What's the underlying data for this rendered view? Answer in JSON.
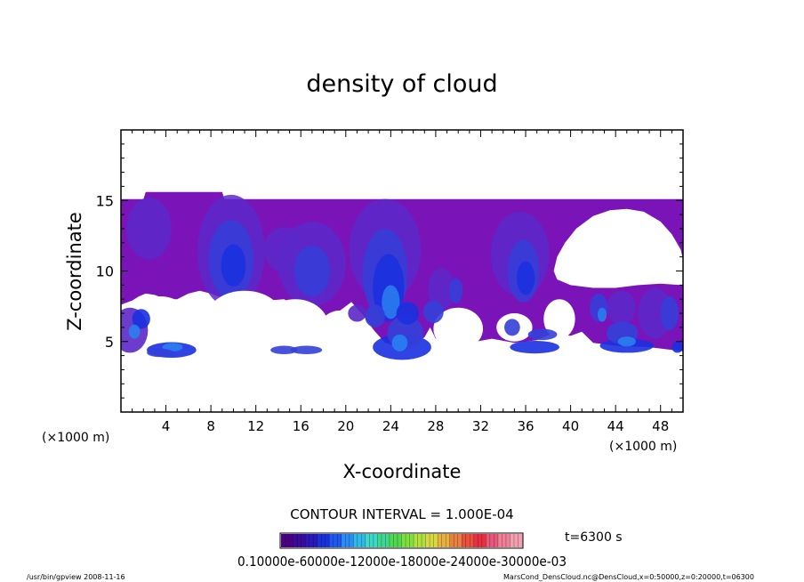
{
  "chart_data": {
    "type": "contour",
    "title": "density of cloud",
    "xlabel": "X-coordinate",
    "ylabel": "Z-coordinate",
    "x_unit": "(×1000 m)",
    "y_unit": "(×1000 m)",
    "xlim": [
      0,
      50
    ],
    "ylim": [
      0,
      20
    ],
    "x_ticks": [
      4,
      8,
      12,
      16,
      20,
      24,
      28,
      32,
      36,
      40,
      44,
      48
    ],
    "y_ticks": [
      5,
      10,
      15
    ],
    "contour_interval_text": "CONTOUR INTERVAL = 1.000E-04",
    "time_text": "t=6300 s",
    "colorbar_labels_text": "0.10000e-60000e-12000e-18000e-24000e-30000e-03",
    "colorbar_colors": [
      "#4b0082",
      "#3a0a9a",
      "#2a18b8",
      "#1a30d8",
      "#1e58f0",
      "#2a8cf4",
      "#30b8e8",
      "#3cd8c8",
      "#40d890",
      "#50d850",
      "#80e040",
      "#b0e040",
      "#d8d840",
      "#e8b040",
      "#e88040",
      "#e85040",
      "#e83040",
      "#e85878",
      "#f08098",
      "#f0a0b0"
    ],
    "cloud_colors": {
      "base": "#7a14b8",
      "low": "#5c28c8",
      "mid": "#3440d8",
      "high": "#1a30e0",
      "core": "#2a80f0",
      "peak": "#30c8d8"
    }
  },
  "footer": {
    "left": "/usr/bin/gpview  2008-11-16",
    "right": "MarsCond_DensCloud.nc@DensCloud,x=0:50000,z=0:20000,t=06300"
  }
}
